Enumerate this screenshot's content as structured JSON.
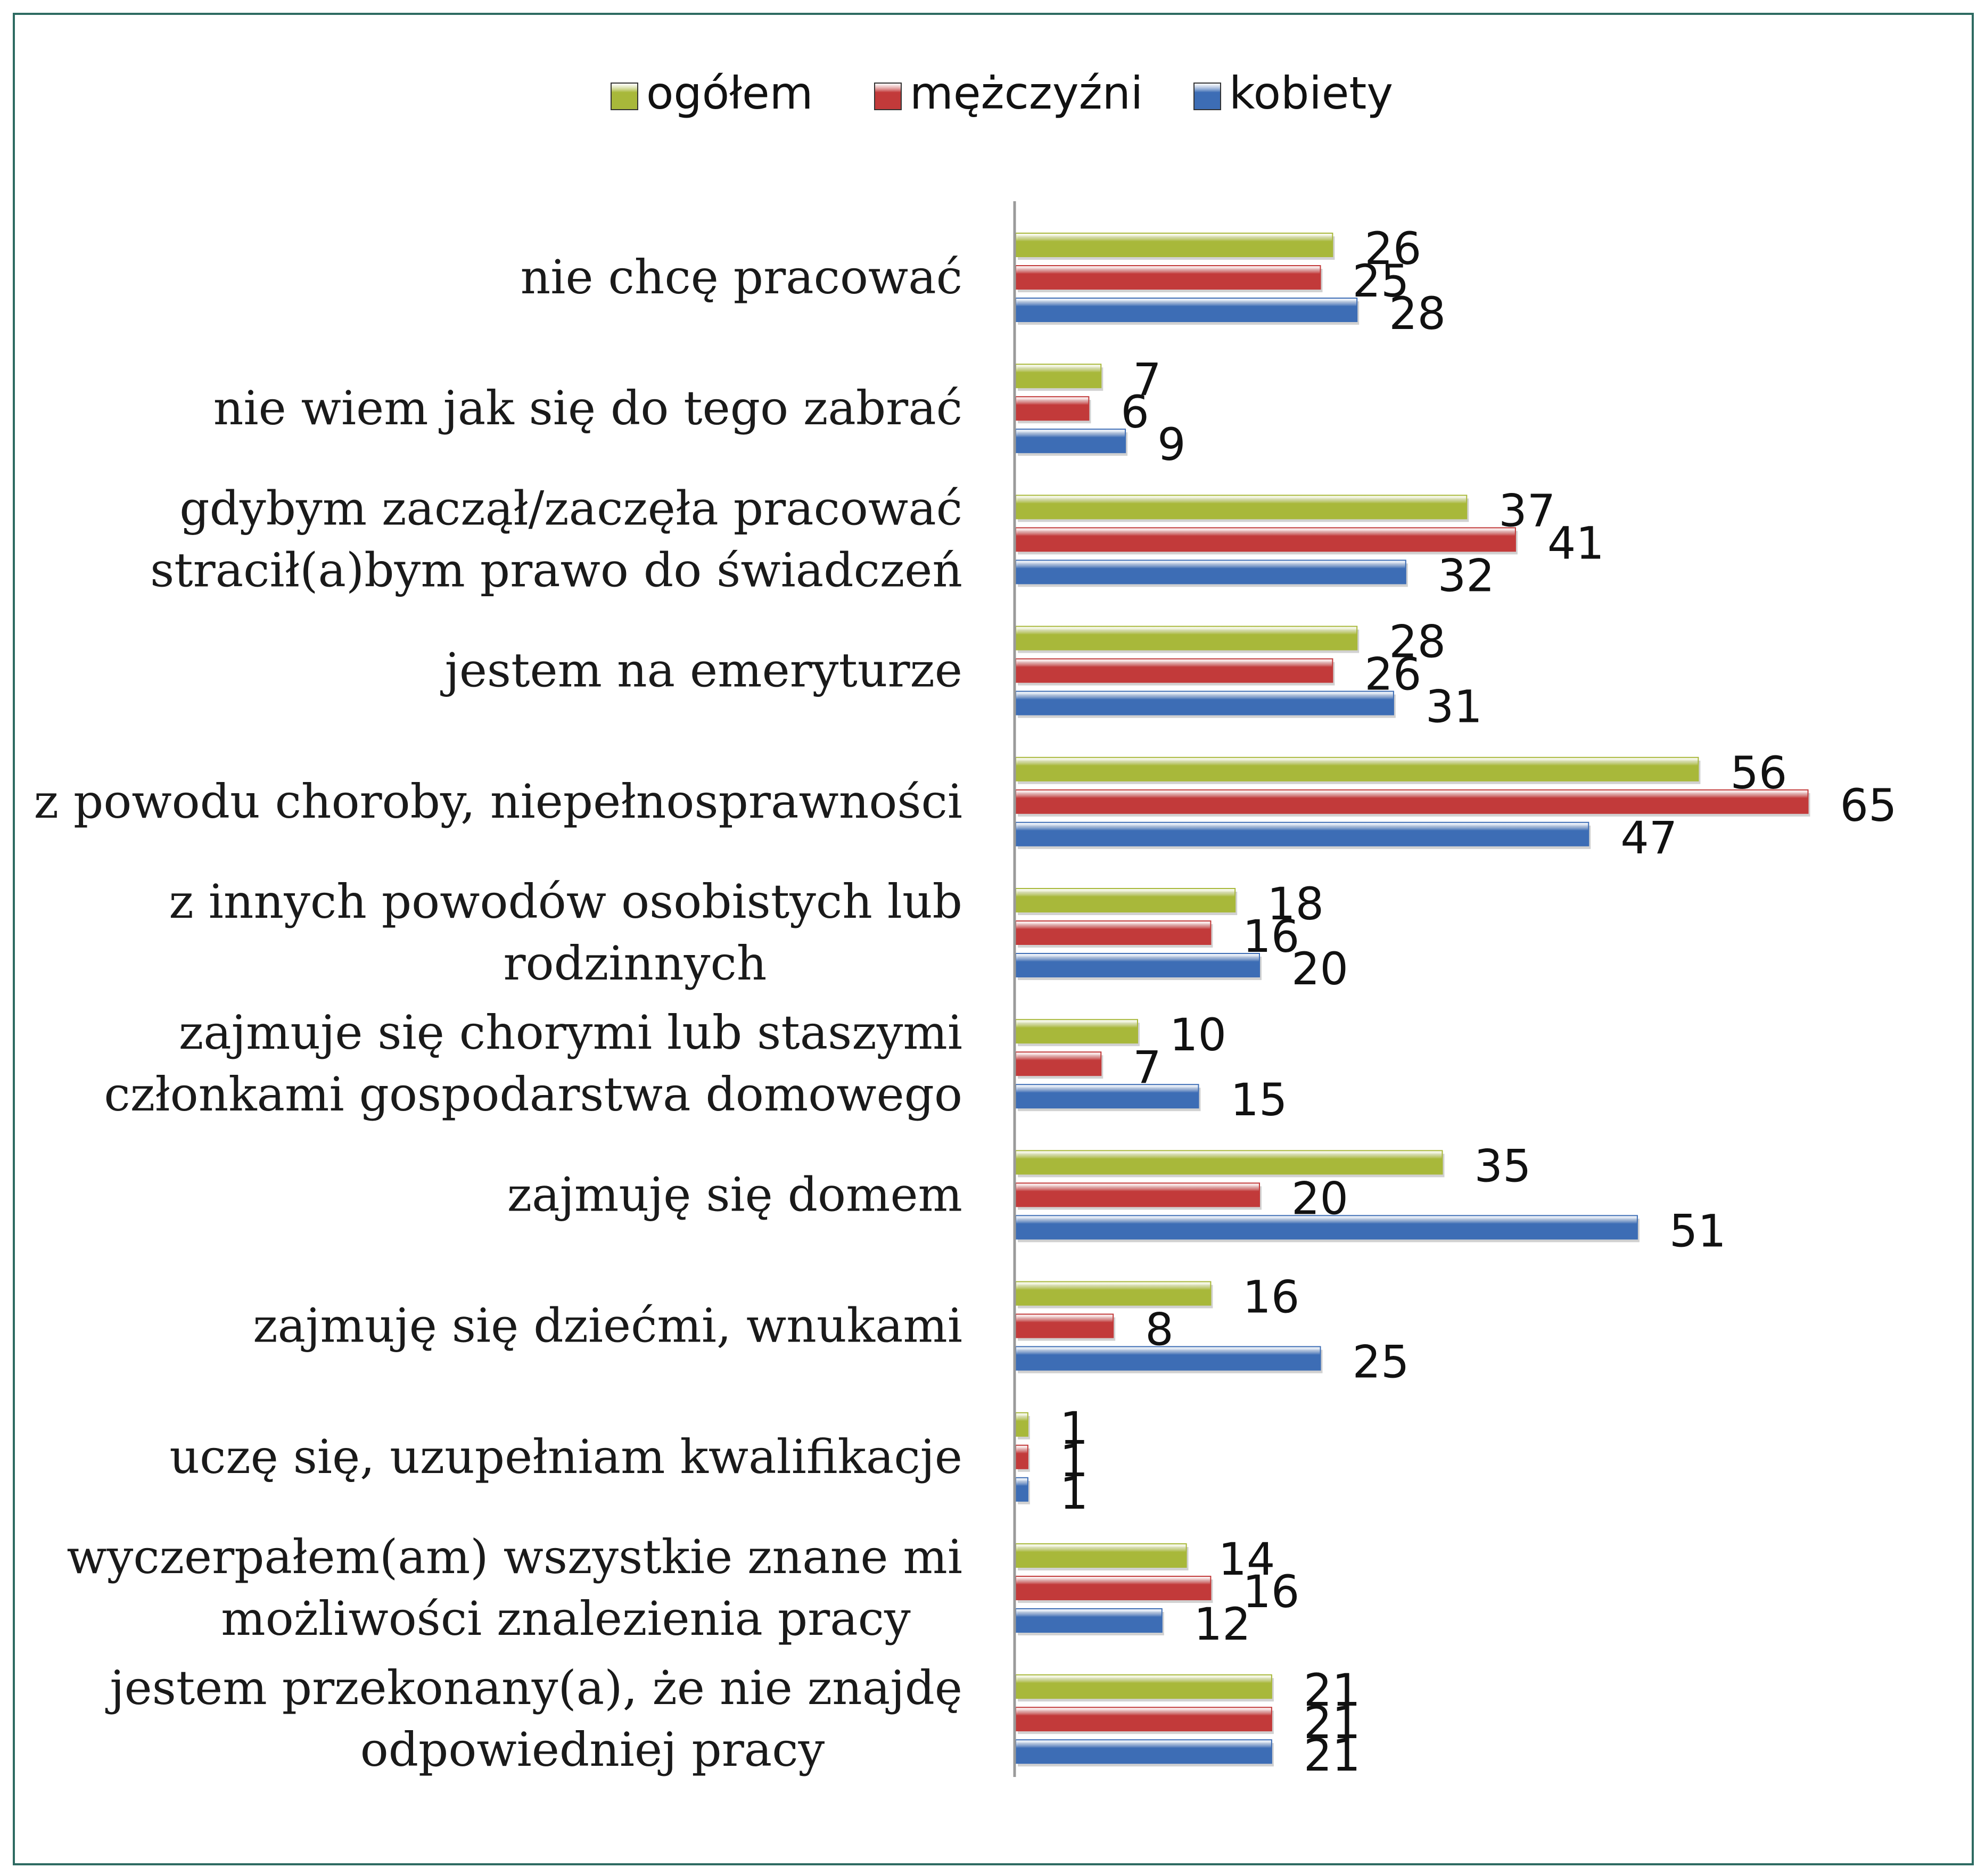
{
  "chart_data": {
    "type": "bar",
    "orientation": "horizontal",
    "categories": [
      "nie chcę pracować",
      "nie wiem jak się do tego zabrać",
      "gdybym zaczął/zaczęła pracować stracił(a)bym prawo do świadczeń",
      "jestem na emeryturze",
      "z powodu choroby, niepełnosprawności",
      "z innych powodów osobistych lub rodzinnych",
      "zajmuje się chorymi lub staszymi członkami gospodarstwa domowego",
      "zajmuję się domem",
      "zajmuję się dziećmi, wnukami",
      "uczę się, uzupełniam kwalifikacje",
      "wyczerpałem(am) wszystkie znane mi możliwości znalezienia pracy",
      "jestem przekonany(a), że nie znajdę odpowiedniej pracy"
    ],
    "category_lines": [
      [
        "nie chcę pracować"
      ],
      [
        "nie wiem jak się do tego zabrać"
      ],
      [
        "gdybym zaczął/zaczęła pracować",
        "stracił(a)bym prawo do świadczeń"
      ],
      [
        "jestem na emeryturze"
      ],
      [
        "z powodu choroby, niepełnosprawności"
      ],
      [
        "z innych powodów osobistych lub",
        "rodzinnych"
      ],
      [
        "zajmuje się chorymi lub staszymi",
        "członkami gospodarstwa domowego"
      ],
      [
        "zajmuję się domem"
      ],
      [
        "zajmuję się dziećmi, wnukami"
      ],
      [
        "uczę się, uzupełniam kwalifikacje"
      ],
      [
        "wyczerpałem(am) wszystkie znane mi",
        "możliwości znalezienia pracy"
      ],
      [
        "jestem przekonany(a), że nie znajdę",
        "odpowiedniej pracy"
      ]
    ],
    "series": [
      {
        "name": "ogółem",
        "color": "#a8b83a",
        "values": [
          26,
          7,
          37,
          28,
          56,
          18,
          10,
          35,
          16,
          1,
          14,
          21
        ]
      },
      {
        "name": "mężczyźni",
        "color": "#c23a3a",
        "values": [
          25,
          6,
          41,
          26,
          65,
          16,
          7,
          20,
          8,
          1,
          16,
          21
        ]
      },
      {
        "name": "kobiety",
        "color": "#3d6db5",
        "values": [
          28,
          9,
          32,
          31,
          47,
          20,
          15,
          51,
          25,
          1,
          12,
          21
        ]
      }
    ],
    "xlim": [
      0,
      70
    ],
    "legend_position": "top-center",
    "grid": false,
    "title": "",
    "xlabel": "",
    "ylabel": ""
  }
}
